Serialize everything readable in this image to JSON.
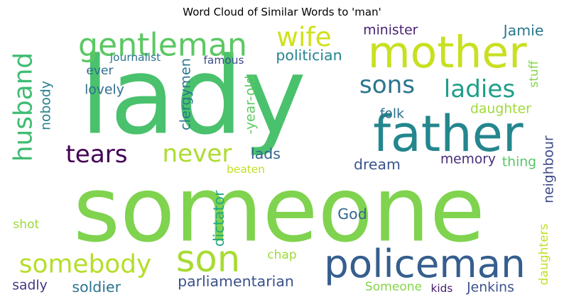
{
  "chart_data": {
    "type": "wordcloud",
    "title": "Word Cloud of Similar Words to 'man'",
    "words": [
      {
        "text": "lady",
        "color": "#4ac16d"
      },
      {
        "text": "someone",
        "color": "#7fd34e"
      },
      {
        "text": "father",
        "color": "#24868e"
      },
      {
        "text": "mother",
        "color": "#c8e020"
      },
      {
        "text": "policeman",
        "color": "#355e8d"
      },
      {
        "text": "son",
        "color": "#a8db34"
      },
      {
        "text": "husband",
        "color": "#3fbc73"
      },
      {
        "text": "gentleman",
        "color": "#5cc863"
      },
      {
        "text": "wife",
        "color": "#d0e11c"
      },
      {
        "text": "sons",
        "color": "#2b758e"
      },
      {
        "text": "ladies",
        "color": "#1f9e89"
      },
      {
        "text": "somebody",
        "color": "#b5de2b"
      },
      {
        "text": "tears",
        "color": "#440154"
      },
      {
        "text": "never",
        "color": "#addc30"
      },
      {
        "text": "parliamentarian",
        "color": "#3b528b"
      },
      {
        "text": "soldier",
        "color": "#2c728e"
      },
      {
        "text": "minister",
        "color": "#482173"
      },
      {
        "text": "Jamie",
        "color": "#2a788e"
      },
      {
        "text": "journalist",
        "color": "#2c738e"
      },
      {
        "text": "famous",
        "color": "#3e4989"
      },
      {
        "text": "politician",
        "color": "#25848e"
      },
      {
        "text": "ever",
        "color": "#2e6e8e"
      },
      {
        "text": "lovely",
        "color": "#2d708e"
      },
      {
        "text": "nobody",
        "color": "#26828e"
      },
      {
        "text": "clergymen",
        "color": "#2a788e"
      },
      {
        "text": "-year-old",
        "color": "#5ec962"
      },
      {
        "text": "folk",
        "color": "#2e6f8e"
      },
      {
        "text": "daughter",
        "color": "#a0da39"
      },
      {
        "text": "stuff",
        "color": "#84d44b"
      },
      {
        "text": "lads",
        "color": "#32648e"
      },
      {
        "text": "dream",
        "color": "#39568c"
      },
      {
        "text": "memory",
        "color": "#472d7b"
      },
      {
        "text": "thing",
        "color": "#58c765"
      },
      {
        "text": "neighbour",
        "color": "#3e4989"
      },
      {
        "text": "beaten",
        "color": "#c2df23"
      },
      {
        "text": "God",
        "color": "#31668e"
      },
      {
        "text": "dictator",
        "color": "#22a884"
      },
      {
        "text": "shot",
        "color": "#9bd93c"
      },
      {
        "text": "chap",
        "color": "#9fda3a"
      },
      {
        "text": "daughters",
        "color": "#c0df25"
      },
      {
        "text": "sadly",
        "color": "#453781"
      },
      {
        "text": "Someone",
        "color": "#86d549"
      },
      {
        "text": "kids",
        "color": "#481c6e"
      },
      {
        "text": "Jenkins",
        "color": "#3b528b"
      }
    ]
  }
}
